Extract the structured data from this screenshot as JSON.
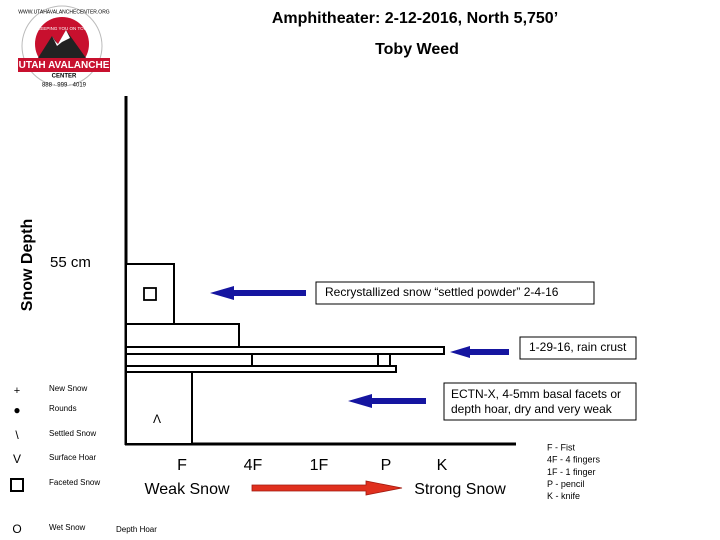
{
  "header": {
    "title": "Amphitheater: 2-12-2016, North 5,750’",
    "subtitle": "Toby Weed"
  },
  "logo": {
    "url": "WWW.UTAHAVALANCHECENTER.ORG",
    "motto": "KEEPING YOU ON TOP",
    "name": "UTAH AVALANCHE",
    "center": "CENTER",
    "phone": "888 · 999 · 4019"
  },
  "profile": {
    "y_axis_label": "Snow Depth",
    "depth_label": "55 cm",
    "hardness_scale": [
      "F",
      "4F",
      "1F",
      "P",
      "K"
    ],
    "weak_label": "Weak Snow",
    "strong_label": "Strong Snow",
    "layer_symbols": [
      "Λ"
    ]
  },
  "annotations": [
    {
      "lines": [
        "Recrystallized snow “settled powder” 2-4-16"
      ]
    },
    {
      "lines": [
        "1-29-16, rain crust"
      ]
    },
    {
      "lines": [
        "ECTN-X,  4-5mm basal facets or",
        "depth hoar, dry and very weak"
      ]
    }
  ],
  "hardness_legend": [
    "F - Fist",
    "4F - 4 fingers",
    "1F - 1 finger",
    "P - pencil",
    "K - knife"
  ],
  "grain_legend": [
    {
      "symbol": "+",
      "name": "New Snow"
    },
    {
      "symbol": "●",
      "name": "Rounds"
    },
    {
      "symbol": "\\",
      "name": "Settled Snow"
    },
    {
      "symbol": "V",
      "name": "Surface Hoar"
    },
    {
      "name": "Faceted Snow"
    },
    {
      "symbol": "O",
      "name": "Wet Snow"
    },
    {
      "name": "Depth Hoar"
    }
  ]
}
